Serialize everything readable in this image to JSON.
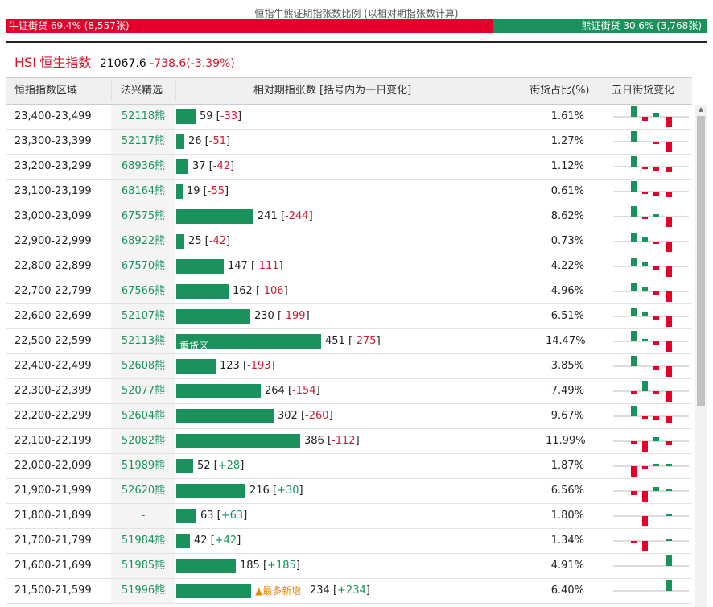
{
  "header": {
    "title": "恒指牛熊证期指张数比例 (以相对期指张数计算)",
    "bull_label": "牛证街货",
    "bull_pct": "69.4%",
    "bull_count": "(8,557张)",
    "bear_label": "熊证街货",
    "bear_pct": "30.6%",
    "bear_count": "(3,768张)"
  },
  "index": {
    "code": "HSI",
    "name": "恒生指数",
    "price": "21067.6",
    "change": "-738.6(-3.39%)"
  },
  "columns": {
    "range": "恒指指数区域",
    "code": "法兴精选",
    "qty": "相对期指张数 [括号内为一日变化]",
    "share": "街货占比(%)",
    "hist": "五日街货变化"
  },
  "max_qty": 451,
  "colors": {
    "bull": "#e4002b",
    "bear": "#19925b",
    "neg_bar": "#e4002b"
  },
  "rows": [
    {
      "range": "23,400-23,499",
      "code": "52118熊",
      "qty": 59,
      "qty_text": "59",
      "change": "-33",
      "share": "1.61%",
      "label": "",
      "note": "",
      "hist": [
        3,
        -1,
        1,
        -3
      ]
    },
    {
      "range": "23,300-23,399",
      "code": "52117熊",
      "qty": 26,
      "qty_text": "26",
      "change": "-51",
      "share": "1.27%",
      "label": "",
      "note": "",
      "hist": [
        3,
        0,
        -0.5,
        -3
      ]
    },
    {
      "range": "23,200-23,299",
      "code": "68936熊",
      "qty": 37,
      "qty_text": "37",
      "change": "-42",
      "share": "1.12%",
      "label": "",
      "note": "",
      "hist": [
        3,
        -0.5,
        -1,
        -1.5
      ]
    },
    {
      "range": "23,100-23,199",
      "code": "68164熊",
      "qty": 19,
      "qty_text": "19",
      "change": "-55",
      "share": "0.61%",
      "label": "",
      "note": "",
      "hist": [
        3,
        -0.5,
        -1,
        -1.5
      ]
    },
    {
      "range": "23,000-23,099",
      "code": "67575熊",
      "qty": 241,
      "qty_text": "241",
      "change": "-244",
      "share": "8.62%",
      "label": "",
      "note": "",
      "hist": [
        3,
        -0.5,
        0.5,
        -3
      ]
    },
    {
      "range": "22,900-22,999",
      "code": "68922熊",
      "qty": 25,
      "qty_text": "25",
      "change": "-42",
      "share": "0.73%",
      "label": "",
      "note": "",
      "hist": [
        2.5,
        1,
        -0.5,
        -3
      ]
    },
    {
      "range": "22,800-22,899",
      "code": "67570熊",
      "qty": 147,
      "qty_text": "147",
      "change": "-111",
      "share": "4.22%",
      "label": "",
      "note": "",
      "hist": [
        2.5,
        1,
        -1,
        -3
      ]
    },
    {
      "range": "22,700-22,799",
      "code": "67566熊",
      "qty": 162,
      "qty_text": "162",
      "change": "-106",
      "share": "4.96%",
      "label": "",
      "note": "",
      "hist": [
        2.5,
        1,
        -1,
        -3
      ]
    },
    {
      "range": "22,600-22,699",
      "code": "52107熊",
      "qty": 230,
      "qty_text": "230",
      "change": "-199",
      "share": "6.51%",
      "label": "",
      "note": "",
      "hist": [
        2.5,
        1,
        -1,
        -3
      ]
    },
    {
      "range": "22,500-22,599",
      "code": "52113熊",
      "qty": 451,
      "qty_text": "451",
      "change": "-275",
      "share": "14.47%",
      "label": "重货区",
      "note": "",
      "hist": [
        3,
        0.5,
        -1,
        -3
      ]
    },
    {
      "range": "22,400-22,499",
      "code": "52608熊",
      "qty": 123,
      "qty_text": "123",
      "change": "-193",
      "share": "3.85%",
      "label": "",
      "note": "",
      "hist": [
        3,
        0,
        -1,
        -3
      ]
    },
    {
      "range": "22,300-22,399",
      "code": "52077熊",
      "qty": 264,
      "qty_text": "264",
      "change": "-154",
      "share": "7.49%",
      "label": "",
      "note": "",
      "hist": [
        -0.5,
        3,
        -0.5,
        -3
      ]
    },
    {
      "range": "22,200-22,299",
      "code": "52604熊",
      "qty": 302,
      "qty_text": "302",
      "change": "-260",
      "share": "9.67%",
      "label": "",
      "note": "",
      "hist": [
        3,
        -0.5,
        -1,
        -2
      ]
    },
    {
      "range": "22,100-22,199",
      "code": "52082熊",
      "qty": 386,
      "qty_text": "386",
      "change": "-112",
      "share": "11.99%",
      "label": "",
      "note": "",
      "hist": [
        -0.5,
        -3,
        1,
        -1
      ]
    },
    {
      "range": "22,000-22,099",
      "code": "51989熊",
      "qty": 52,
      "qty_text": "52",
      "change": "+28",
      "share": "1.87%",
      "label": "",
      "note": "",
      "hist": [
        -3,
        -0.5,
        0.5,
        0.5
      ]
    },
    {
      "range": "21,900-21,999",
      "code": "52620熊",
      "qty": 216,
      "qty_text": "216",
      "change": "+30",
      "share": "6.56%",
      "label": "",
      "note": "",
      "hist": [
        -1,
        -3,
        1,
        0.5
      ]
    },
    {
      "range": "21,800-21,899",
      "code": "-",
      "qty": 63,
      "qty_text": "63",
      "change": "+63",
      "share": "1.80%",
      "label": "",
      "note": "",
      "hist": [
        0,
        -3,
        0,
        0.5
      ]
    },
    {
      "range": "21,700-21,799",
      "code": "51984熊",
      "qty": 42,
      "qty_text": "42",
      "change": "+42",
      "share": "1.34%",
      "label": "",
      "note": "",
      "hist": [
        -0.5,
        -3,
        0,
        0.5
      ]
    },
    {
      "range": "21,600-21,699",
      "code": "51985熊",
      "qty": 185,
      "qty_text": "185",
      "change": "+185",
      "share": "4.91%",
      "label": "",
      "note": "",
      "hist": [
        0,
        0,
        0,
        3
      ]
    },
    {
      "range": "21,500-21,599",
      "code": "51996熊",
      "qty": 234,
      "qty_text": "234",
      "change": "+234",
      "share": "6.40%",
      "label": "",
      "note": "▲最多新增",
      "hist": [
        0,
        0,
        0,
        3
      ]
    }
  ]
}
